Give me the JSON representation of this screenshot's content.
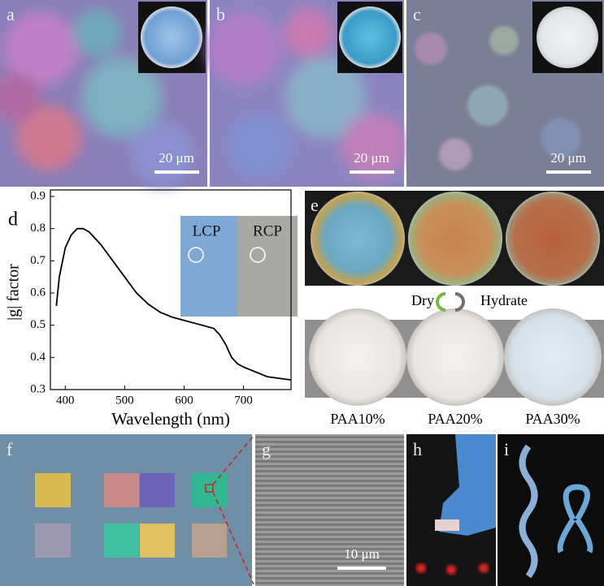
{
  "panel_labels": [
    "a",
    "b",
    "c",
    "d",
    "e",
    "f",
    "g",
    "h",
    "i"
  ],
  "scale_bars": {
    "a": "20 μm",
    "b": "20 μm",
    "c": "20 μm",
    "g": "10 μm"
  },
  "panel_e": {
    "left_label": "Dry",
    "right_label": "Hydrate",
    "samples": [
      "PAA10%",
      "PAA20%",
      "PAA30%"
    ]
  },
  "chart_data": {
    "type": "line",
    "x_label": "Wavelength (nm)",
    "y_label": "|g| factor",
    "inset_labels": [
      "LCP",
      "RCP"
    ],
    "x": [
      385,
      390,
      400,
      410,
      420,
      430,
      440,
      460,
      480,
      500,
      520,
      540,
      560,
      580,
      600,
      620,
      630,
      640,
      650,
      660,
      670,
      680,
      690,
      700,
      720,
      740,
      760,
      780
    ],
    "series": [
      {
        "name": null,
        "color": "#000000",
        "values": [
          0.56,
          0.65,
          0.74,
          0.78,
          0.8,
          0.8,
          0.79,
          0.75,
          0.7,
          0.65,
          0.6,
          0.565,
          0.54,
          0.525,
          0.515,
          0.505,
          0.5,
          0.495,
          0.49,
          0.47,
          0.44,
          0.4,
          0.38,
          0.37,
          0.355,
          0.34,
          0.335,
          0.33
        ]
      }
    ],
    "xlim": [
      375,
      780
    ],
    "xticks": [
      400,
      500,
      600,
      700
    ],
    "ylim": [
      0.3,
      0.9
    ],
    "yticks": [
      0.3,
      0.4,
      0.5,
      0.6,
      0.7,
      0.8,
      0.9
    ]
  }
}
